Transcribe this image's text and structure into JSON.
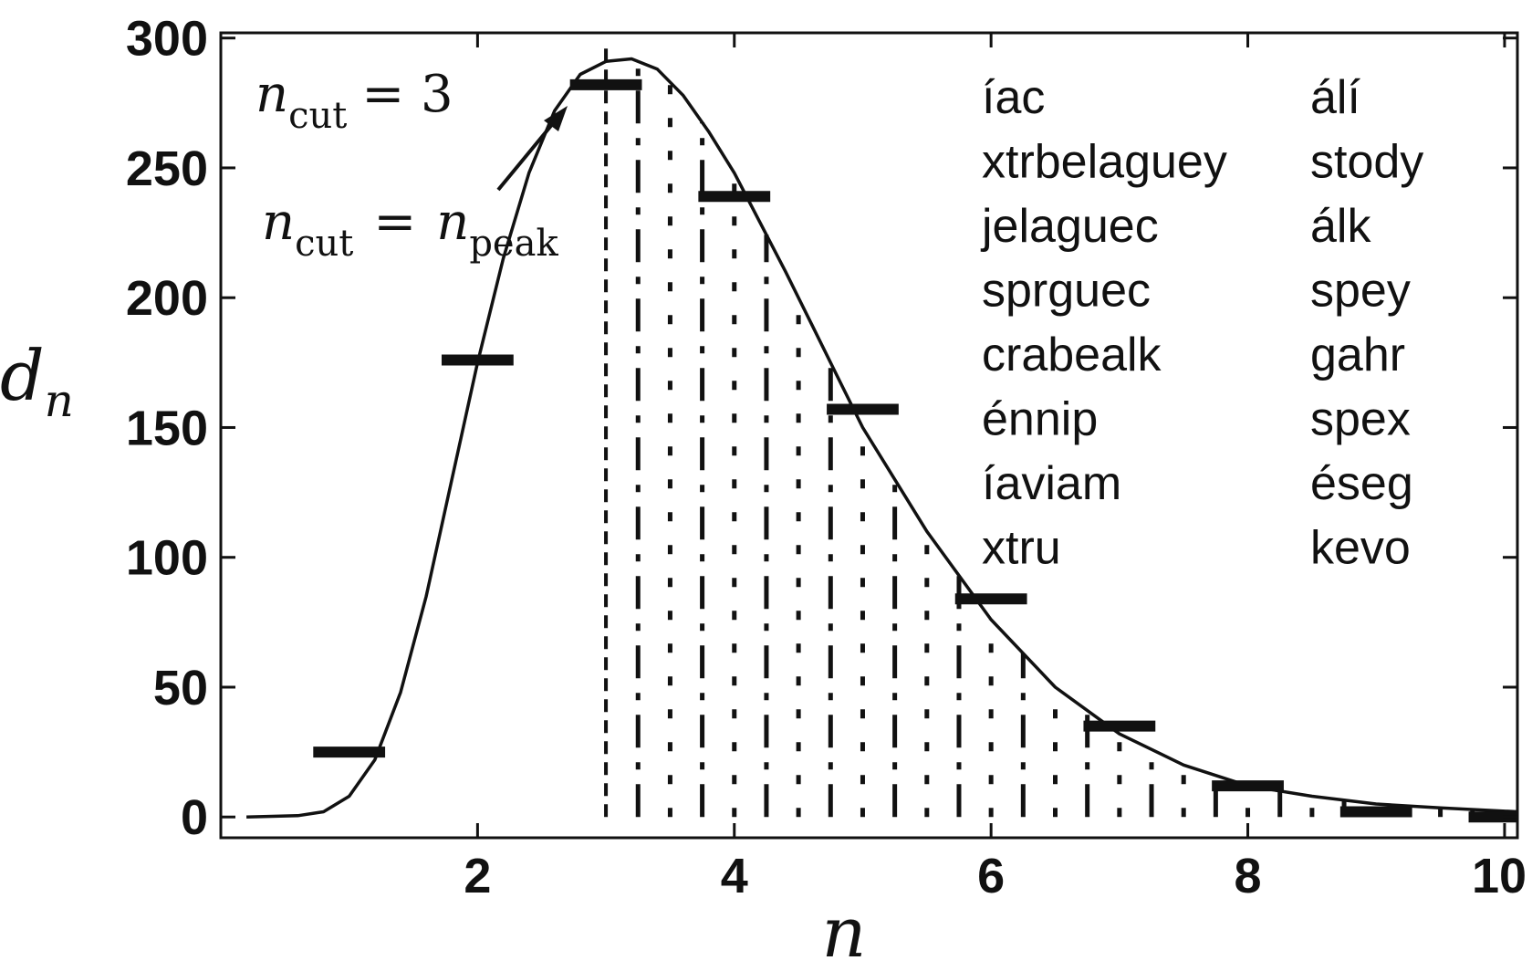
{
  "chart_data": {
    "type": "line",
    "title": "",
    "xlabel": "n",
    "ylabel_main": "d",
    "ylabel_sub": "n",
    "xlim": [
      0,
      10.1
    ],
    "ylim": [
      -8,
      302
    ],
    "x_ticks": [
      "2",
      "4",
      "6",
      "8",
      "10"
    ],
    "x_tick_values": [
      2,
      4,
      6,
      8,
      10
    ],
    "y_ticks": [
      "0",
      "50",
      "100",
      "150",
      "200",
      "250",
      "300"
    ],
    "y_tick_values": [
      0,
      50,
      100,
      150,
      200,
      250,
      300
    ],
    "grid": false,
    "bars": {
      "x": [
        1,
        2,
        3,
        4,
        5,
        6,
        7,
        8,
        9,
        10
      ],
      "values": [
        25,
        176,
        282,
        239,
        157,
        84,
        35,
        12,
        2,
        0
      ]
    },
    "curve": {
      "x": [
        0.2,
        0.6,
        0.8,
        1.0,
        1.2,
        1.4,
        1.6,
        1.8,
        2.0,
        2.2,
        2.4,
        2.6,
        2.8,
        3.0,
        3.2,
        3.4,
        3.6,
        3.8,
        4.0,
        4.2,
        4.4,
        4.6,
        4.8,
        5.0,
        5.5,
        6.0,
        6.5,
        7.0,
        7.5,
        8.0,
        8.5,
        9.0,
        9.5,
        10.1
      ],
      "values": [
        0,
        0.5,
        2,
        8,
        22,
        48,
        85,
        130,
        175,
        215,
        248,
        272,
        286,
        291,
        292,
        288,
        278,
        264,
        248,
        229,
        210,
        190,
        170,
        150,
        110,
        76,
        50,
        32,
        20,
        12,
        8,
        5,
        3.5,
        2
      ]
    },
    "cut_line_x": 3,
    "shading": {
      "x_start": 3,
      "x_end": 10.1,
      "stripe_step": 0.25
    },
    "annotations": {
      "ncut3_main": "n",
      "ncut3_sub": "cut",
      "ncut3_eq": "= 3",
      "ncutpeak_main": "n",
      "ncutpeak_sub": "cut",
      "ncutpeak_eq": "=",
      "ncutpeak_rhs": "n",
      "ncutpeak_rhs_sub": "peak"
    },
    "legend_left": [
      "íac",
      "xtrbelaguey",
      "jelaguec",
      "sprguec",
      "crabealk",
      "énnip",
      "íaviam",
      "xtru"
    ],
    "legend_right": [
      "álí",
      "stody",
      "álk",
      "spey",
      "gahr",
      "spex",
      "éseg",
      "kevo"
    ]
  }
}
